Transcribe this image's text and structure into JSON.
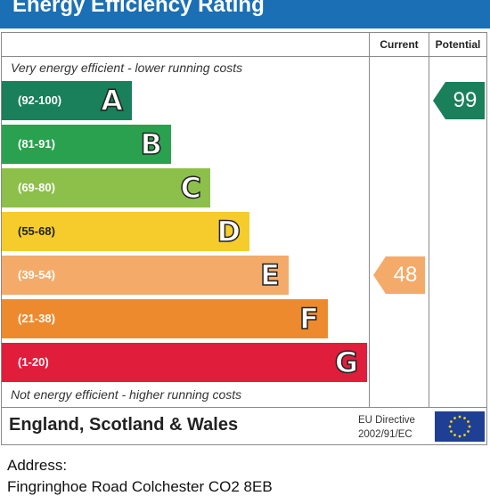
{
  "header": {
    "title": "Energy Efficiency Rating"
  },
  "columns": {
    "current": "Current",
    "potential": "Potential"
  },
  "notes": {
    "top": "Very energy efficient - lower running costs",
    "bottom": "Not energy efficient - higher running costs"
  },
  "chart_data": {
    "type": "bar",
    "title": "Energy Efficiency Rating",
    "bands": [
      {
        "letter": "A",
        "range": "(92-100)",
        "color": "#1a7f5b"
      },
      {
        "letter": "B",
        "range": "(81-91)",
        "color": "#2aa14e"
      },
      {
        "letter": "C",
        "range": "(69-80)",
        "color": "#8dc04a"
      },
      {
        "letter": "D",
        "range": "(55-68)",
        "color": "#f5cc2c"
      },
      {
        "letter": "E",
        "range": "(39-54)",
        "color": "#f4ab6a"
      },
      {
        "letter": "F",
        "range": "(21-38)",
        "color": "#ee8a2e"
      },
      {
        "letter": "G",
        "range": "(1-20)",
        "color": "#e01d3a"
      }
    ],
    "current": {
      "value": 48,
      "band": "E",
      "color": "#f4ab6a"
    },
    "potential": {
      "value": 99,
      "band": "A",
      "color": "#1a7f5b"
    }
  },
  "footer": {
    "region": "England, Scotland & Wales",
    "directive_line1": "EU Directive",
    "directive_line2": "2002/91/EC"
  },
  "address": {
    "label": "Address:",
    "value": "Fingringhoe Road Colchester CO2 8EB"
  }
}
